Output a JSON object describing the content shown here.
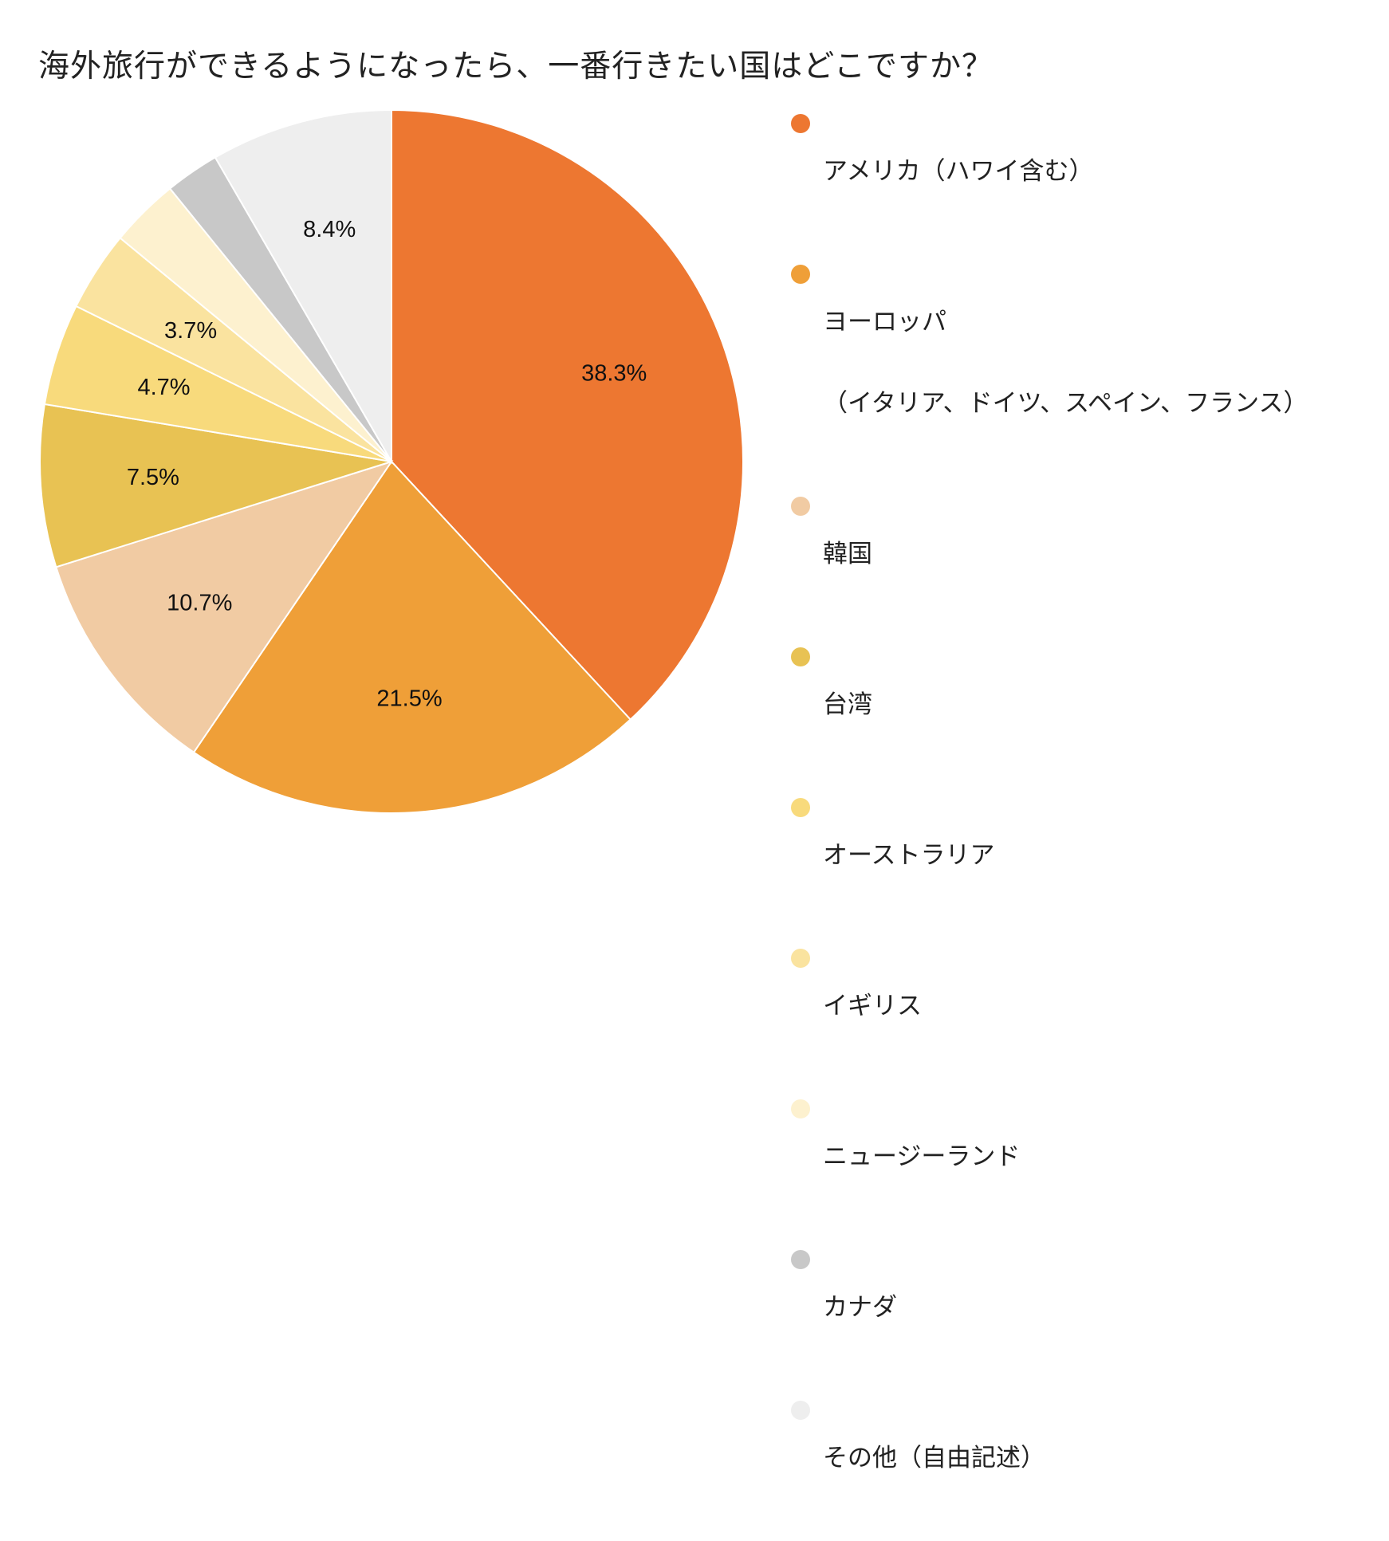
{
  "chart_data": {
    "type": "pie",
    "title": "海外旅行ができるようになったら、一番行きたい国はどこですか？",
    "slices": [
      {
        "label": "アメリカ（ハワイ含む）",
        "value": 38.3,
        "data_label": "38.3%",
        "color": "#ED7731"
      },
      {
        "label": "ヨーロッパ",
        "label_line2": "（イタリア、ドイツ、スペイン、フランス）",
        "value": 21.5,
        "data_label": "21.5%",
        "color": "#EF9F38"
      },
      {
        "label": "韓国",
        "value": 10.7,
        "data_label": "10.7%",
        "color": "#F1CBA3"
      },
      {
        "label": "台湾",
        "value": 7.5,
        "data_label": "7.5%",
        "color": "#E8C253"
      },
      {
        "label": "オーストラリア",
        "value": 4.7,
        "data_label": "4.7%",
        "color": "#F8DA7C"
      },
      {
        "label": "イギリス",
        "value": 3.7,
        "data_label": "3.7%",
        "color": "#FAE39F"
      },
      {
        "label": "ニュージーランド",
        "value": 3.2,
        "data_label": "",
        "color": "#FDF1CF"
      },
      {
        "label": "カナダ",
        "value": 2.5,
        "data_label": "",
        "color": "#C8C8C8"
      },
      {
        "label": "その他（自由記述）",
        "value": 8.4,
        "data_label": "8.4%",
        "color": "#EEEEEE"
      }
    ],
    "legend_position": "right"
  }
}
